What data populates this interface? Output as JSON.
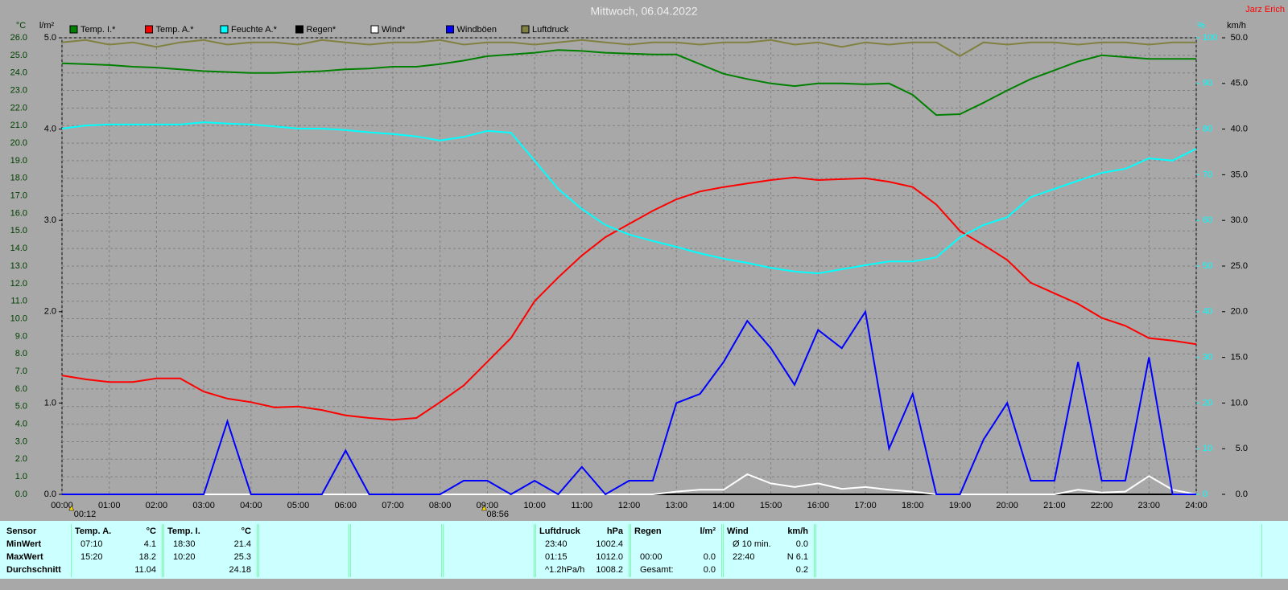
{
  "chart_data": {
    "type": "line",
    "title": "Mittwoch, 06.04.2022",
    "author": "Jarz Erich",
    "y_label": "°C",
    "y2_label": "l/m²",
    "y3_label": "%",
    "y4_label": "km/h",
    "grid": true,
    "xlim": [
      0,
      24
    ],
    "xticks": [
      {
        "value": 0,
        "label": "00:00"
      },
      {
        "value": 1,
        "label": "01:00"
      },
      {
        "value": 2,
        "label": "02:00"
      },
      {
        "value": 3,
        "label": "03:00"
      },
      {
        "value": 4,
        "label": "04:00"
      },
      {
        "value": 5,
        "label": "05:00"
      },
      {
        "value": 6,
        "label": "06:00"
      },
      {
        "value": 7,
        "label": "07:00"
      },
      {
        "value": 8,
        "label": "08:00"
      },
      {
        "value": 9,
        "label": "09:00"
      },
      {
        "value": 10,
        "label": "10:00"
      },
      {
        "value": 11,
        "label": "11:00"
      },
      {
        "value": 12,
        "label": "12:00"
      },
      {
        "value": 13,
        "label": "13:00"
      },
      {
        "value": 14,
        "label": "14:00"
      },
      {
        "value": 15,
        "label": "15:00"
      },
      {
        "value": 16,
        "label": "16:00"
      },
      {
        "value": 17,
        "label": "17:00"
      },
      {
        "value": 18,
        "label": "18:00"
      },
      {
        "value": 19,
        "label": "19:00"
      },
      {
        "value": 20,
        "label": "20:00"
      },
      {
        "value": 21,
        "label": "21:00"
      },
      {
        "value": 22,
        "label": "22:00"
      },
      {
        "value": 23,
        "label": "23:00"
      },
      {
        "value": 24,
        "label": "24:00"
      }
    ],
    "ylim": [
      0,
      26
    ],
    "yticks": [
      {
        "value": 0,
        "label": "0.0"
      },
      {
        "value": 1,
        "label": "1.0"
      },
      {
        "value": 2,
        "label": "2.0"
      },
      {
        "value": 3,
        "label": "3.0"
      },
      {
        "value": 4,
        "label": "4.0"
      },
      {
        "value": 5,
        "label": "5.0"
      },
      {
        "value": 6,
        "label": "6.0"
      },
      {
        "value": 7,
        "label": "7.0"
      },
      {
        "value": 8,
        "label": "8.0"
      },
      {
        "value": 9,
        "label": "9.0"
      },
      {
        "value": 10,
        "label": "10.0"
      },
      {
        "value": 11,
        "label": "11.0"
      },
      {
        "value": 12,
        "label": "12.0"
      },
      {
        "value": 13,
        "label": "13.0"
      },
      {
        "value": 14,
        "label": "14.0"
      },
      {
        "value": 15,
        "label": "15.0"
      },
      {
        "value": 16,
        "label": "16.0"
      },
      {
        "value": 17,
        "label": "17.0"
      },
      {
        "value": 18,
        "label": "18.0"
      },
      {
        "value": 19,
        "label": "19.0"
      },
      {
        "value": 20,
        "label": "20.0"
      },
      {
        "value": 21,
        "label": "21.0"
      },
      {
        "value": 22,
        "label": "22.0"
      },
      {
        "value": 23,
        "label": "23.0"
      },
      {
        "value": 24,
        "label": "24.0"
      },
      {
        "value": 25,
        "label": "25.0"
      },
      {
        "value": 26,
        "label": "26.0"
      }
    ],
    "y2lim": [
      0,
      5
    ],
    "y2ticks": [
      {
        "value": 0,
        "label": "0.0"
      },
      {
        "value": 1,
        "label": "1.0"
      },
      {
        "value": 2,
        "label": "2.0"
      },
      {
        "value": 3,
        "label": "3.0"
      },
      {
        "value": 4,
        "label": "4.0"
      },
      {
        "value": 5,
        "label": "5.0"
      }
    ],
    "y3lim": [
      0,
      100
    ],
    "y3ticks": [
      0,
      10,
      20,
      30,
      40,
      50,
      60,
      70,
      80,
      90,
      100
    ],
    "y4lim": [
      0,
      50
    ],
    "y4ticks": [
      {
        "value": 0,
        "label": "0.0"
      },
      {
        "value": 5,
        "label": "5.0"
      },
      {
        "value": 10,
        "label": "10.0"
      },
      {
        "value": 15,
        "label": "15.0"
      },
      {
        "value": 20,
        "label": "20.0"
      },
      {
        "value": 25,
        "label": "25.0"
      },
      {
        "value": 30,
        "label": "30.0"
      },
      {
        "value": 35,
        "label": "35.0"
      },
      {
        "value": 40,
        "label": "40.0"
      },
      {
        "value": 45,
        "label": "45.0"
      },
      {
        "value": 50,
        "label": "50.0"
      }
    ],
    "markers": [
      {
        "x": 0.2,
        "label": "00:12"
      },
      {
        "x": 8.933,
        "label": "08:56"
      }
    ],
    "x": [
      0,
      0.5,
      1,
      1.5,
      2,
      2.5,
      3,
      3.5,
      4,
      4.5,
      5,
      5.5,
      6,
      6.5,
      7,
      7.5,
      8,
      8.5,
      9,
      9.5,
      10,
      10.5,
      11,
      11.5,
      12,
      12.5,
      13,
      13.5,
      14,
      14.5,
      15,
      15.5,
      16,
      16.5,
      17,
      17.5,
      18,
      18.5,
      19,
      19.5,
      20,
      20.5,
      21,
      21.5,
      22,
      22.5,
      23,
      23.5,
      24
    ],
    "series": [
      {
        "name": "Temp. I.*",
        "color": "#008000",
        "axis": "y",
        "values": [
          24.55,
          24.5,
          24.45,
          24.35,
          24.3,
          24.2,
          24.1,
          24.05,
          24.0,
          24.0,
          24.05,
          24.1,
          24.2,
          24.25,
          24.35,
          24.35,
          24.5,
          24.7,
          24.95,
          25.05,
          25.15,
          25.3,
          25.25,
          25.15,
          25.1,
          25.05,
          25.05,
          24.5,
          23.95,
          23.65,
          23.4,
          23.25,
          23.4,
          23.4,
          23.35,
          23.4,
          22.75,
          21.6,
          21.65,
          22.3,
          23.0,
          23.65,
          24.15,
          24.65,
          25.0,
          24.9,
          24.8,
          24.8,
          24.8
        ]
      },
      {
        "name": "Temp. A.*",
        "color": "#ff0000",
        "axis": "y",
        "values": [
          6.77,
          6.55,
          6.4,
          6.4,
          6.6,
          6.6,
          5.85,
          5.45,
          5.25,
          4.95,
          5.0,
          4.8,
          4.5,
          4.35,
          4.25,
          4.35,
          5.25,
          6.2,
          7.55,
          8.9,
          11.0,
          12.35,
          13.6,
          14.65,
          15.4,
          16.15,
          16.8,
          17.25,
          17.5,
          17.7,
          17.9,
          18.05,
          17.9,
          17.95,
          18.0,
          17.8,
          17.5,
          16.5,
          15.0,
          14.2,
          13.35,
          12.05,
          11.45,
          10.85,
          10.05,
          9.6,
          8.9,
          8.75,
          8.55
        ]
      },
      {
        "name": "Feuchte A.*",
        "color": "#00ffff",
        "axis": "y3",
        "values": [
          80.1,
          80.8,
          81,
          81,
          81,
          81,
          81.5,
          81.2,
          81,
          80.6,
          80.1,
          80.1,
          79.8,
          79.3,
          78.9,
          78.4,
          77.5,
          78.3,
          79.6,
          79.2,
          73.1,
          66.9,
          62.5,
          59,
          56.9,
          55.5,
          54.2,
          52.8,
          51.6,
          50.7,
          49.6,
          48.8,
          48.4,
          49.3,
          50.2,
          51,
          51,
          51.9,
          56.3,
          59,
          60.7,
          65.1,
          66.9,
          68.7,
          70.4,
          71.3,
          73.6,
          73.1,
          75.7
        ]
      },
      {
        "name": "Regen*",
        "color": "#000000",
        "axis": "y2",
        "values": [
          0,
          0,
          0,
          0,
          0,
          0,
          0,
          0,
          0,
          0,
          0,
          0,
          0,
          0,
          0,
          0,
          0,
          0,
          0,
          0,
          0,
          0,
          0,
          0,
          0,
          0,
          0,
          0,
          0,
          0,
          0,
          0,
          0,
          0,
          0,
          0,
          0,
          0,
          0,
          0,
          0,
          0,
          0,
          0,
          0,
          0,
          0,
          0,
          0
        ]
      },
      {
        "name": "Wind*",
        "color": "#ffffff",
        "axis": "y4",
        "values": [
          0,
          0,
          0,
          0,
          0,
          0,
          0,
          0,
          0,
          0,
          0,
          0,
          0,
          0,
          0,
          0,
          0,
          0,
          0,
          0,
          0,
          0,
          0,
          0,
          0,
          0,
          0.3,
          0.5,
          0.5,
          2.2,
          1.2,
          0.8,
          1.2,
          0.6,
          0.8,
          0.5,
          0.3,
          0,
          0,
          0,
          0,
          0,
          0,
          0.5,
          0.2,
          0.3,
          2.0,
          0.5,
          0
        ]
      },
      {
        "name": "Windböen",
        "color": "#0000ff",
        "axis": "y4",
        "values": [
          0,
          0,
          0,
          0,
          0,
          0,
          0,
          8,
          0,
          0,
          0,
          0,
          4.8,
          0,
          0,
          0,
          0,
          1.5,
          1.5,
          0,
          1.5,
          0,
          3,
          0,
          1.5,
          1.5,
          10,
          11,
          14.5,
          19,
          16,
          12,
          18,
          16,
          20,
          5,
          11,
          0,
          0,
          6,
          10,
          1.5,
          1.5,
          14.5,
          1.5,
          1.5,
          15,
          0,
          0
        ]
      },
      {
        "name": "Luftdruck",
        "color": "#808040",
        "axis": "y3",
        "values": [
          99,
          99.5,
          98.5,
          99,
          98,
          99,
          99.5,
          98.5,
          99,
          99,
          98.5,
          99.5,
          99,
          98.5,
          99,
          99,
          99.5,
          98.5,
          99,
          99,
          98.5,
          99,
          99.5,
          99,
          98.5,
          99,
          99,
          98.5,
          99,
          99,
          99.5,
          98.5,
          99,
          98,
          99,
          98.5,
          99,
          99,
          96,
          99,
          98.5,
          99,
          99,
          98.5,
          99,
          99,
          98.5,
          99,
          99
        ]
      }
    ]
  },
  "stats_table": {
    "row_labels": [
      "Sensor",
      "MinWert",
      "MaxWert",
      "Durchschnitt"
    ],
    "groups": [
      {
        "title": "Temp. A.",
        "unit": "°C",
        "rows": [
          [
            "07:10",
            "4.1"
          ],
          [
            "15:20",
            "18.2"
          ],
          [
            null,
            "11.04"
          ]
        ]
      },
      {
        "title": "Temp. I.",
        "unit": "°C",
        "rows": [
          [
            "18:30",
            "21.4"
          ],
          [
            "10:20",
            "25.3"
          ],
          [
            null,
            "24.18"
          ]
        ]
      },
      {
        "title": "Luftdruck",
        "unit": "hPa",
        "rows": [
          [
            "23:40",
            "1002.4"
          ],
          [
            "01:15",
            "1012.0"
          ],
          [
            "^1.2hPa/h",
            "1008.2"
          ]
        ]
      },
      {
        "title": "Regen",
        "unit": "l/m²",
        "rows": [
          [
            null,
            null
          ],
          [
            "00:00",
            "0.0"
          ],
          [
            "Gesamt:",
            "0.0"
          ]
        ]
      },
      {
        "title": "Wind",
        "unit": "km/h",
        "rows": [
          [
            "Ø 10 min.",
            "0.0"
          ],
          [
            "22:40",
            "N 6.1"
          ],
          [
            null,
            "0.2"
          ]
        ]
      }
    ]
  }
}
